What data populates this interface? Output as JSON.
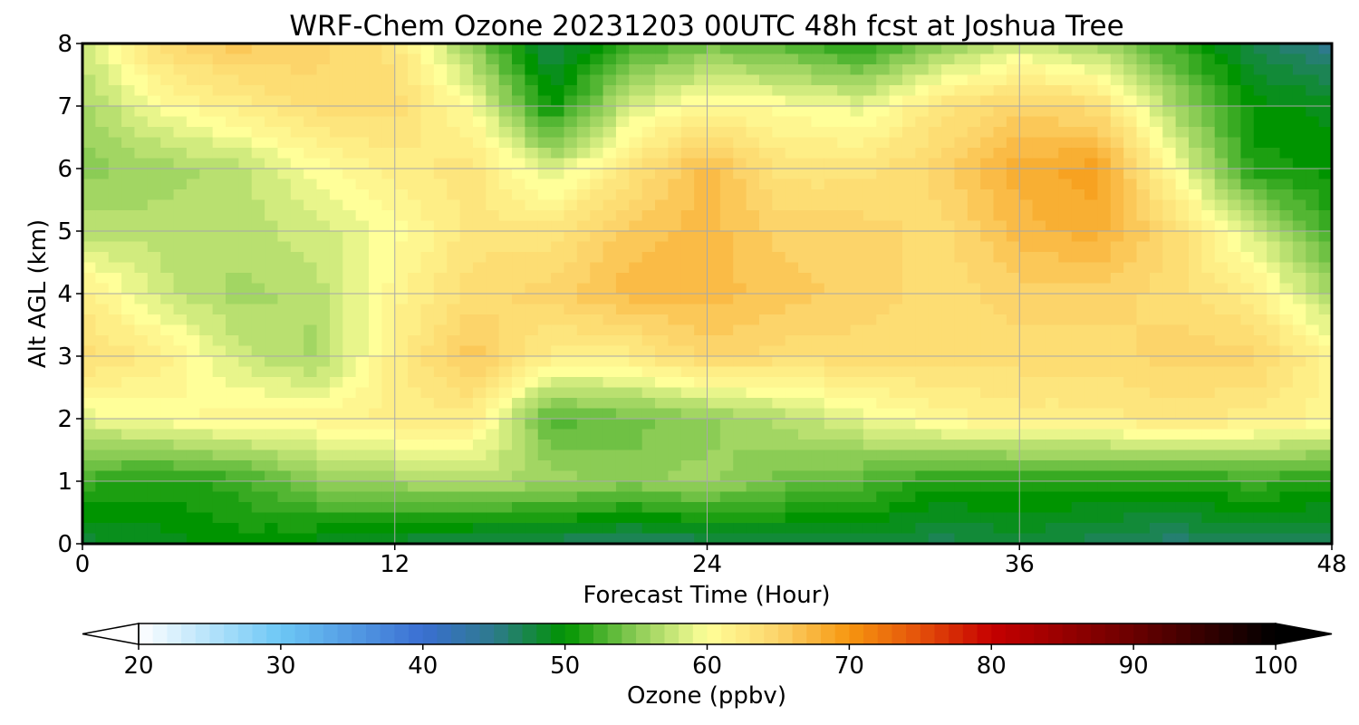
{
  "chart_data": {
    "type": "heatmap",
    "title": "WRF-Chem Ozone  20231203 00UTC 48h fcst at Joshua Tree",
    "xlabel": "Forecast Time (Hour)",
    "ylabel": "Alt AGL (km)",
    "xlim": [
      0,
      48
    ],
    "ylim": [
      0,
      8
    ],
    "x_ticks": [
      "0",
      "12",
      "24",
      "36",
      "48"
    ],
    "y_ticks": [
      "0",
      "1",
      "2",
      "3",
      "4",
      "5",
      "6",
      "7",
      "8"
    ],
    "grid": true,
    "x": [
      0,
      3,
      6,
      9,
      12,
      15,
      18,
      21,
      24,
      27,
      30,
      33,
      36,
      39,
      42,
      45,
      48
    ],
    "y": [
      0,
      1,
      2,
      3,
      4,
      5,
      6,
      7,
      8
    ],
    "z": [
      [
        48,
        49,
        50,
        49,
        48,
        47,
        47,
        46,
        47,
        48,
        48,
        47,
        48,
        47,
        46,
        47,
        47
      ],
      [
        52,
        51,
        52,
        55,
        56,
        57,
        56,
        55,
        56,
        54,
        53,
        51,
        51,
        51,
        51,
        52,
        51
      ],
      [
        59,
        60,
        61,
        61,
        62,
        62,
        53,
        54,
        55,
        57,
        59,
        61,
        62,
        62,
        63,
        62,
        61
      ],
      [
        64,
        62,
        58,
        56,
        62,
        66,
        62,
        62,
        65,
        64,
        64,
        64,
        64,
        64,
        65,
        65,
        61
      ],
      [
        62,
        58,
        56,
        57,
        61,
        64,
        65,
        67,
        67,
        66,
        65,
        64,
        65,
        65,
        64,
        62,
        56
      ],
      [
        57,
        57,
        57,
        58,
        60,
        63,
        63,
        66,
        67,
        65,
        65,
        64,
        67,
        68,
        64,
        58,
        52
      ],
      [
        55,
        56,
        57,
        60,
        62,
        63,
        58,
        63,
        67,
        63,
        63,
        65,
        68,
        69,
        60,
        51,
        50
      ],
      [
        56,
        60,
        62,
        64,
        64,
        60,
        50,
        58,
        61,
        60,
        59,
        63,
        65,
        64,
        56,
        50,
        49
      ],
      [
        58,
        64,
        66,
        65,
        63,
        55,
        47,
        52,
        54,
        53,
        51,
        55,
        58,
        56,
        52,
        47,
        45
      ]
    ],
    "colorbar": {
      "label": "Ozone  (ppbv)",
      "min": 20,
      "max": 100,
      "ticks": [
        "20",
        "30",
        "40",
        "50",
        "60",
        "70",
        "80",
        "90",
        "100"
      ],
      "extend": "both",
      "stops": [
        {
          "v": 20,
          "c": "#ffffff"
        },
        {
          "v": 30,
          "c": "#6cc7f5"
        },
        {
          "v": 40,
          "c": "#3a6fd2"
        },
        {
          "v": 45,
          "c": "#2e7a8c"
        },
        {
          "v": 50,
          "c": "#009400"
        },
        {
          "v": 55,
          "c": "#8bcc55"
        },
        {
          "v": 60,
          "c": "#ffff99"
        },
        {
          "v": 65,
          "c": "#fcd46a"
        },
        {
          "v": 70,
          "c": "#f6960f"
        },
        {
          "v": 75,
          "c": "#e4500a"
        },
        {
          "v": 80,
          "c": "#c60000"
        },
        {
          "v": 90,
          "c": "#6a0000"
        },
        {
          "v": 100,
          "c": "#000000"
        }
      ]
    }
  }
}
